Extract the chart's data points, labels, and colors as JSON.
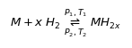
{
  "background_color": "#ffffff",
  "text_color": "#000000",
  "fontsize": 9.5,
  "equation": "$M + x\\ H_2\\ \\underset{P_2,T_2}{\\overset{P_1,T_1}{\\rightleftharpoons}}\\ MH_{2x}$"
}
